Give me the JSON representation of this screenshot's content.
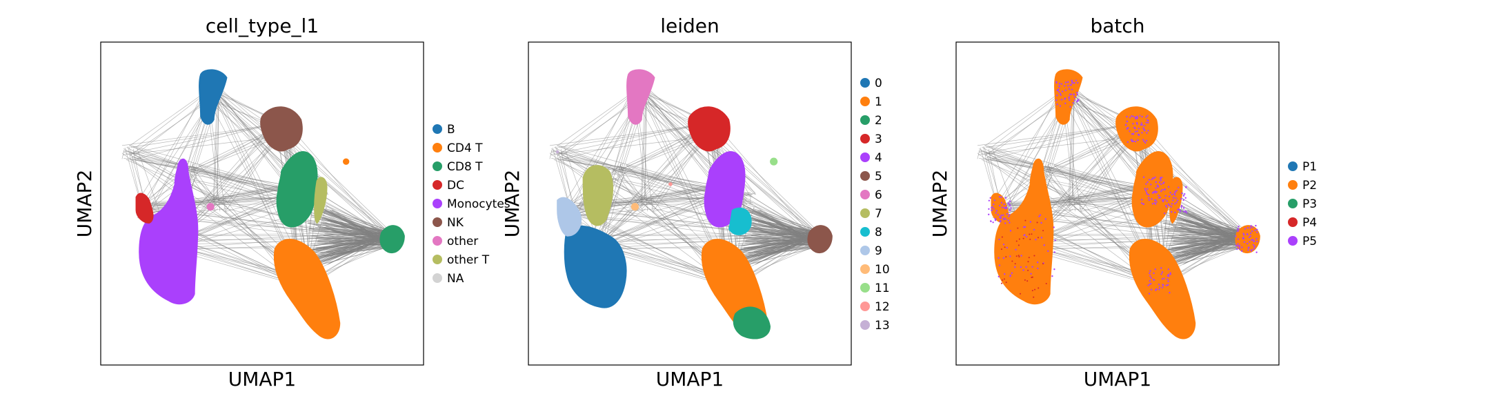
{
  "chart_data": [
    {
      "type": "scatter",
      "title": "cell_type_l1",
      "xlabel": "UMAP1",
      "ylabel": "UMAP2",
      "grid": false,
      "legend_position": "right",
      "categories": [
        "B",
        "CD4 T",
        "CD8 T",
        "DC",
        "Monocytes",
        "NK",
        "other",
        "other T",
        "NA"
      ],
      "colors": [
        "#1f77b4",
        "#ff7f0e",
        "#279e68",
        "#d62728",
        "#aa40fc",
        "#8c564b",
        "#e377c2",
        "#b5bd61",
        "#d3d3d3"
      ]
    },
    {
      "type": "scatter",
      "title": "leiden",
      "xlabel": "UMAP1",
      "ylabel": "UMAP2",
      "grid": false,
      "legend_position": "right",
      "categories": [
        "0",
        "1",
        "2",
        "3",
        "4",
        "5",
        "6",
        "7",
        "8",
        "9",
        "10",
        "11",
        "12",
        "13"
      ],
      "colors": [
        "#1f77b4",
        "#ff7f0e",
        "#279e68",
        "#d62728",
        "#aa40fc",
        "#8c564b",
        "#e377c2",
        "#b5bd61",
        "#17becf",
        "#aec7e8",
        "#ffbb78",
        "#98df8a",
        "#ff9896",
        "#c5b0d5"
      ]
    },
    {
      "type": "scatter",
      "title": "batch",
      "xlabel": "UMAP1",
      "ylabel": "UMAP2",
      "grid": false,
      "legend_position": "right",
      "categories": [
        "P1",
        "P2",
        "P3",
        "P4",
        "P5"
      ],
      "colors": [
        "#1f77b4",
        "#ff7f0e",
        "#279e68",
        "#d62728",
        "#aa40fc"
      ]
    }
  ],
  "edge_color": "#808080"
}
